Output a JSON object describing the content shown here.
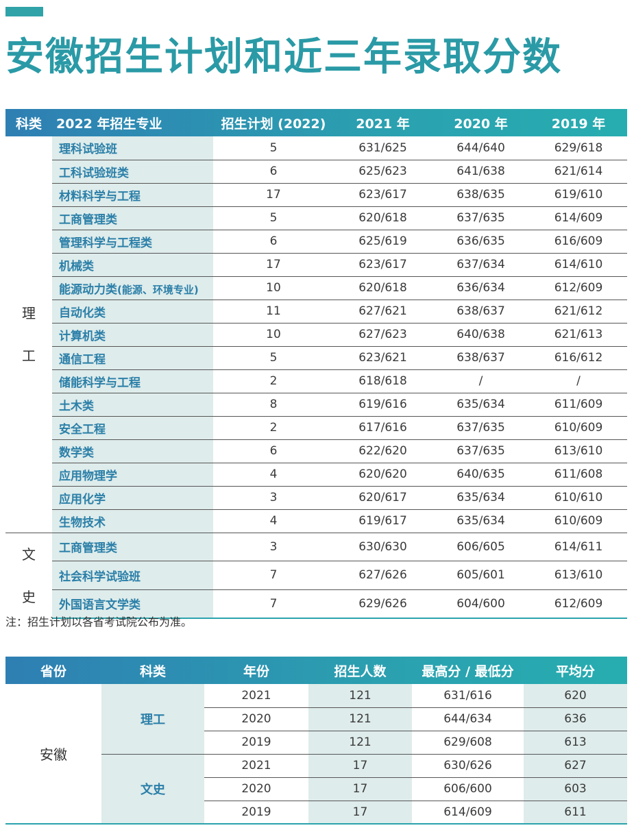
{
  "title": "安徽招生计划和近三年录取分数",
  "colors": {
    "accent": "#2a9aa6",
    "header_start": "#2e7fb3",
    "header_end": "#27adb0",
    "shade": "#deeceb",
    "major_text": "#2b7fa8"
  },
  "table1": {
    "headers": [
      "科类",
      "2022 年招生专业",
      "招生计划 (2022)",
      "2021 年",
      "2020 年",
      "2019 年"
    ],
    "groups": [
      {
        "category": [
          "理",
          "工"
        ]
      },
      {
        "category": [
          "文",
          "史"
        ]
      }
    ],
    "rows": [
      {
        "major": "理科试验班",
        "note": "",
        "plan": "5",
        "y2021": "631/625",
        "y2020": "644/640",
        "y2019": "629/618"
      },
      {
        "major": "工科试验班类",
        "note": "",
        "plan": "6",
        "y2021": "625/623",
        "y2020": "641/638",
        "y2019": "621/614"
      },
      {
        "major": "材料科学与工程",
        "note": "",
        "plan": "17",
        "y2021": "623/617",
        "y2020": "638/635",
        "y2019": "619/610"
      },
      {
        "major": "工商管理类",
        "note": "",
        "plan": "5",
        "y2021": "620/618",
        "y2020": "637/635",
        "y2019": "614/609"
      },
      {
        "major": "管理科学与工程类",
        "note": "",
        "plan": "6",
        "y2021": "625/619",
        "y2020": "636/635",
        "y2019": "616/609"
      },
      {
        "major": "机械类",
        "note": "",
        "plan": "17",
        "y2021": "623/617",
        "y2020": "637/634",
        "y2019": "614/610"
      },
      {
        "major": "能源动力类",
        "note": "(能源、环境专业)",
        "plan": "10",
        "y2021": "620/618",
        "y2020": "636/634",
        "y2019": "612/609"
      },
      {
        "major": "自动化类",
        "note": "",
        "plan": "11",
        "y2021": "627/621",
        "y2020": "638/637",
        "y2019": "621/612"
      },
      {
        "major": "计算机类",
        "note": "",
        "plan": "10",
        "y2021": "627/623",
        "y2020": "640/638",
        "y2019": "621/613"
      },
      {
        "major": "通信工程",
        "note": "",
        "plan": "5",
        "y2021": "623/621",
        "y2020": "638/637",
        "y2019": "616/612"
      },
      {
        "major": "储能科学与工程",
        "note": "",
        "plan": "2",
        "y2021": "618/618",
        "y2020": "/",
        "y2019": "/"
      },
      {
        "major": "土木类",
        "note": "",
        "plan": "8",
        "y2021": "619/616",
        "y2020": "635/634",
        "y2019": "611/609"
      },
      {
        "major": "安全工程",
        "note": "",
        "plan": "2",
        "y2021": "617/616",
        "y2020": "637/635",
        "y2019": "610/609"
      },
      {
        "major": "数学类",
        "note": "",
        "plan": "6",
        "y2021": "622/620",
        "y2020": "637/635",
        "y2019": "613/610"
      },
      {
        "major": "应用物理学",
        "note": "",
        "plan": "4",
        "y2021": "620/620",
        "y2020": "640/635",
        "y2019": "611/608"
      },
      {
        "major": "应用化学",
        "note": "",
        "plan": "3",
        "y2021": "620/617",
        "y2020": "635/634",
        "y2019": "610/610"
      },
      {
        "major": "生物技术",
        "note": "",
        "plan": "4",
        "y2021": "619/617",
        "y2020": "635/634",
        "y2019": "610/609"
      },
      {
        "major": "工商管理类",
        "note": "",
        "plan": "3",
        "y2021": "630/630",
        "y2020": "606/605",
        "y2019": "614/611"
      },
      {
        "major": "社会科学试验班",
        "note": "",
        "plan": "7",
        "y2021": "627/626",
        "y2020": "605/601",
        "y2019": "613/610"
      },
      {
        "major": "外国语言文学类",
        "note": "",
        "plan": "7",
        "y2021": "629/626",
        "y2020": "604/600",
        "y2019": "612/609"
      }
    ]
  },
  "note": "注：招生计划以各省考试院公布为准。",
  "table2": {
    "headers": [
      "省份",
      "科类",
      "年份",
      "招生人数",
      "最高分 / 最低分",
      "平均分"
    ],
    "province": "安徽",
    "groups": [
      {
        "category": "理工",
        "rows": [
          {
            "year": "2021",
            "count": "121",
            "range": "631/616",
            "avg": "620"
          },
          {
            "year": "2020",
            "count": "121",
            "range": "644/634",
            "avg": "636"
          },
          {
            "year": "2019",
            "count": "121",
            "range": "629/608",
            "avg": "613"
          }
        ]
      },
      {
        "category": "文史",
        "rows": [
          {
            "year": "2021",
            "count": "17",
            "range": "630/626",
            "avg": "627"
          },
          {
            "year": "2020",
            "count": "17",
            "range": "606/600",
            "avg": "603"
          },
          {
            "year": "2019",
            "count": "17",
            "range": "614/609",
            "avg": "611"
          }
        ]
      }
    ]
  }
}
